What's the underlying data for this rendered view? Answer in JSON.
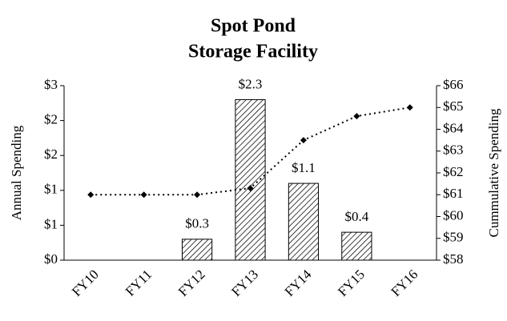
{
  "chart_data": {
    "type": "bar",
    "title": [
      "Spot Pond",
      "Storage Facility"
    ],
    "y_label": "Annual Spending",
    "y2_label": "Cummulative Spending",
    "categories": [
      "FY10",
      "FY11",
      "FY12",
      "FY13",
      "FY14",
      "FY15",
      "FY16"
    ],
    "series": [
      {
        "type": "bar",
        "color": "#000000",
        "values": [
          null,
          null,
          0.3,
          2.3,
          1.1,
          0.4,
          null
        ],
        "value_labels": [
          null,
          null,
          "$0.3",
          "$2.3",
          "$1.1",
          "$0.4",
          null
        ]
      },
      {
        "type": "line",
        "axis": "y2",
        "color": "#000000",
        "values": [
          61,
          61,
          61,
          61.3,
          63.5,
          64.6,
          65
        ]
      }
    ],
    "ylim": [
      0,
      2.5
    ],
    "yticks": [
      {
        "value": 0,
        "label": "$0"
      },
      {
        "value": 0.5,
        "label": "$1"
      },
      {
        "value": 1,
        "label": "$1"
      },
      {
        "value": 1.5,
        "label": "$2"
      },
      {
        "value": 2,
        "label": "$2"
      },
      {
        "value": 2.5,
        "label": "$3"
      }
    ],
    "y2lim": [
      58,
      66
    ],
    "y2ticks": [
      {
        "value": 58,
        "label": "$58"
      },
      {
        "value": 59,
        "label": "$59"
      },
      {
        "value": 60,
        "label": "$60"
      },
      {
        "value": 61,
        "label": "$61"
      },
      {
        "value": 62,
        "label": "$62"
      },
      {
        "value": 63,
        "label": "$63"
      },
      {
        "value": 64,
        "label": "$64"
      },
      {
        "value": 65,
        "label": "$65"
      },
      {
        "value": 66,
        "label": "$66"
      }
    ],
    "grid": false
  }
}
